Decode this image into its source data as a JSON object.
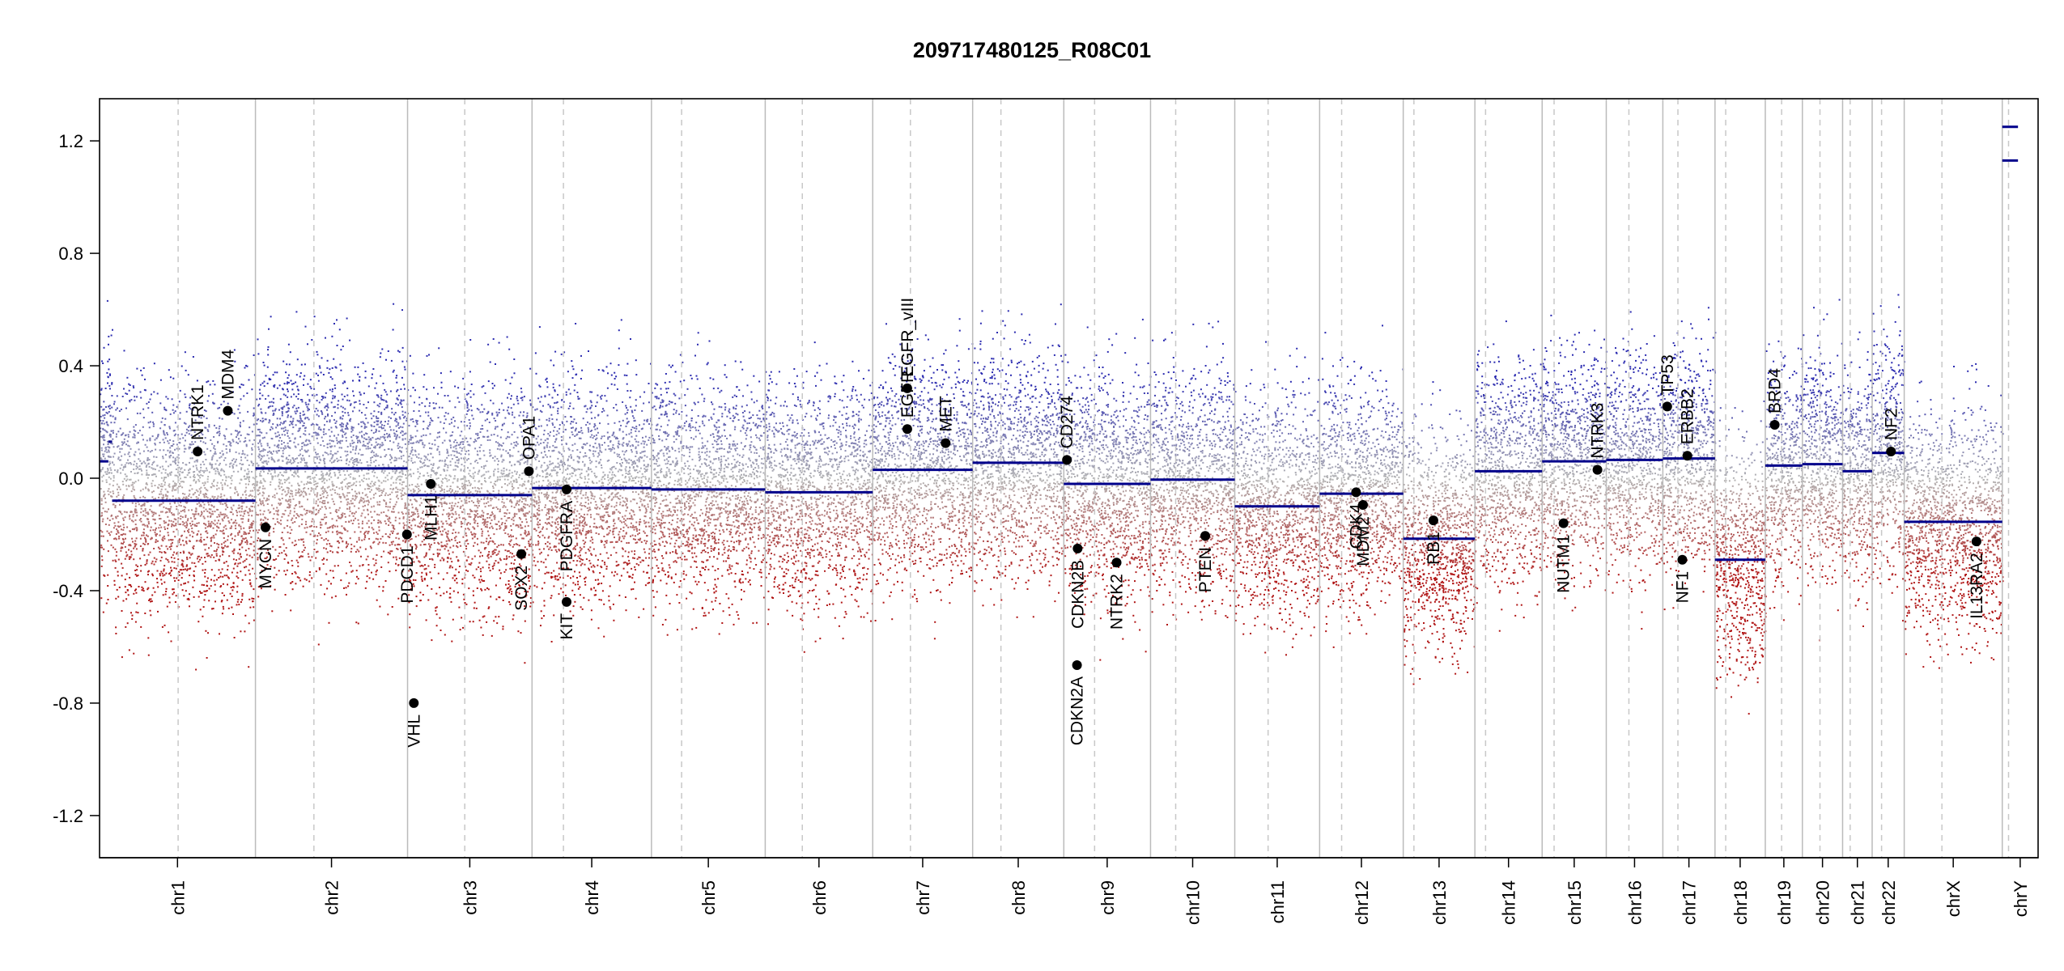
{
  "chart_data": {
    "type": "scatter",
    "title": "209717480125_R08C01",
    "xlabel": "",
    "ylabel": "",
    "ylim": [
      -1.35,
      1.35
    ],
    "yticks": [
      -1.2,
      -0.8,
      -0.4,
      0.0,
      0.4,
      0.8,
      1.2
    ],
    "ytick_labels": [
      "-1.2",
      "-0.8",
      "-0.4",
      "0.0",
      "0.4",
      "0.8",
      "1.2"
    ],
    "colors": {
      "gain": "#2b2bb0",
      "loss": "#b01515",
      "neutral": "#b4b4b4",
      "segment": "#00008b",
      "separator": "#bbbbbb",
      "centromere": "#c8c8c8",
      "gene": "#000000"
    },
    "chromosomes": [
      {
        "name": "chr1",
        "size": 248
      },
      {
        "name": "chr2",
        "size": 242
      },
      {
        "name": "chr3",
        "size": 198
      },
      {
        "name": "chr4",
        "size": 190
      },
      {
        "name": "chr5",
        "size": 181
      },
      {
        "name": "chr6",
        "size": 171
      },
      {
        "name": "chr7",
        "size": 159
      },
      {
        "name": "chr8",
        "size": 145
      },
      {
        "name": "chr9",
        "size": 138
      },
      {
        "name": "chr10",
        "size": 134
      },
      {
        "name": "chr11",
        "size": 135
      },
      {
        "name": "chr12",
        "size": 133
      },
      {
        "name": "chr13",
        "size": 114
      },
      {
        "name": "chr14",
        "size": 107
      },
      {
        "name": "chr15",
        "size": 102
      },
      {
        "name": "chr16",
        "size": 90
      },
      {
        "name": "chr17",
        "size": 83
      },
      {
        "name": "chr18",
        "size": 80
      },
      {
        "name": "chr19",
        "size": 59
      },
      {
        "name": "chr20",
        "size": 64
      },
      {
        "name": "chr21",
        "size": 47
      },
      {
        "name": "chr22",
        "size": 51
      },
      {
        "name": "chrX",
        "size": 156
      },
      {
        "name": "chrY",
        "size": 57
      }
    ],
    "centromeres": [
      {
        "chr": "chr1",
        "pos": 125
      },
      {
        "chr": "chr2",
        "pos": 93
      },
      {
        "chr": "chr3",
        "pos": 91
      },
      {
        "chr": "chr4",
        "pos": 50
      },
      {
        "chr": "chr5",
        "pos": 48
      },
      {
        "chr": "chr6",
        "pos": 59
      },
      {
        "chr": "chr7",
        "pos": 60
      },
      {
        "chr": "chr8",
        "pos": 45
      },
      {
        "chr": "chr9",
        "pos": 49
      },
      {
        "chr": "chr10",
        "pos": 40
      },
      {
        "chr": "chr11",
        "pos": 53
      },
      {
        "chr": "chr12",
        "pos": 35
      },
      {
        "chr": "chr13",
        "pos": 17
      },
      {
        "chr": "chr14",
        "pos": 17
      },
      {
        "chr": "chr15",
        "pos": 19
      },
      {
        "chr": "chr16",
        "pos": 36
      },
      {
        "chr": "chr17",
        "pos": 24
      },
      {
        "chr": "chr18",
        "pos": 17
      },
      {
        "chr": "chr19",
        "pos": 26
      },
      {
        "chr": "chr20",
        "pos": 28
      },
      {
        "chr": "chr21",
        "pos": 12
      },
      {
        "chr": "chr22",
        "pos": 15
      },
      {
        "chr": "chrX",
        "pos": 60
      },
      {
        "chr": "chrY",
        "pos": 10
      }
    ],
    "segments": [
      {
        "chr": "chr1",
        "start": 0,
        "end": 14,
        "value": 0.06
      },
      {
        "chr": "chr1",
        "start": 14,
        "end": 20,
        "value": 0.13
      },
      {
        "chr": "chr1",
        "start": 20,
        "end": 248,
        "value": -0.08
      },
      {
        "chr": "chr2",
        "start": 0,
        "end": 242,
        "value": 0.035
      },
      {
        "chr": "chr3",
        "start": 0,
        "end": 198,
        "value": -0.06
      },
      {
        "chr": "chr4",
        "start": 0,
        "end": 190,
        "value": -0.035
      },
      {
        "chr": "chr5",
        "start": 0,
        "end": 181,
        "value": -0.04
      },
      {
        "chr": "chr6",
        "start": 0,
        "end": 171,
        "value": -0.05
      },
      {
        "chr": "chr7",
        "start": 0,
        "end": 159,
        "value": 0.03
      },
      {
        "chr": "chr8",
        "start": 0,
        "end": 145,
        "value": 0.055
      },
      {
        "chr": "chr9",
        "start": 0,
        "end": 138,
        "value": -0.02
      },
      {
        "chr": "chr10",
        "start": 0,
        "end": 134,
        "value": -0.005
      },
      {
        "chr": "chr11",
        "start": 0,
        "end": 135,
        "value": -0.1
      },
      {
        "chr": "chr12",
        "start": 0,
        "end": 133,
        "value": -0.055
      },
      {
        "chr": "chr13",
        "start": 0,
        "end": 114,
        "value": -0.215
      },
      {
        "chr": "chr14",
        "start": 0,
        "end": 107,
        "value": 0.025
      },
      {
        "chr": "chr15",
        "start": 0,
        "end": 102,
        "value": 0.06
      },
      {
        "chr": "chr16",
        "start": 0,
        "end": 90,
        "value": 0.065
      },
      {
        "chr": "chr17",
        "start": 0,
        "end": 83,
        "value": 0.07
      },
      {
        "chr": "chr18",
        "start": 0,
        "end": 80,
        "value": -0.29
      },
      {
        "chr": "chr19",
        "start": 0,
        "end": 59,
        "value": 0.045
      },
      {
        "chr": "chr20",
        "start": 0,
        "end": 64,
        "value": 0.05
      },
      {
        "chr": "chr21",
        "start": 0,
        "end": 47,
        "value": 0.025
      },
      {
        "chr": "chr22",
        "start": 0,
        "end": 51,
        "value": 0.09
      },
      {
        "chr": "chrX",
        "start": 0,
        "end": 156,
        "value": -0.155
      },
      {
        "chr": "chrY",
        "start": 0,
        "end": 25,
        "value": 1.25
      },
      {
        "chr": "chrY",
        "start": 0,
        "end": 25,
        "value": 1.13
      }
    ],
    "genes": [
      {
        "name": "NTRK1",
        "chr": "chr1",
        "pos": 156,
        "value": 0.095,
        "label_side": "above"
      },
      {
        "name": "MDM4",
        "chr": "chr1",
        "pos": 204,
        "value": 0.24,
        "label_side": "above"
      },
      {
        "name": "MYCN",
        "chr": "chr2",
        "pos": 16,
        "value": -0.175,
        "label_side": "below"
      },
      {
        "name": "PDCD1",
        "chr": "chr2",
        "pos": 241,
        "value": -0.2,
        "label_side": "below"
      },
      {
        "name": "VHL",
        "chr": "chr3",
        "pos": 10,
        "value": -0.8,
        "label_side": "below"
      },
      {
        "name": "MLH1",
        "chr": "chr3",
        "pos": 37,
        "value": -0.02,
        "label_side": "below"
      },
      {
        "name": "SOX2",
        "chr": "chr3",
        "pos": 181,
        "value": -0.27,
        "label_side": "below"
      },
      {
        "name": "OPA1",
        "chr": "chr3",
        "pos": 193,
        "value": 0.025,
        "label_side": "above"
      },
      {
        "name": "KIT",
        "chr": "chr4",
        "pos": 55,
        "value": -0.44,
        "label_side": "below"
      },
      {
        "name": "PDGFRA",
        "chr": "chr4",
        "pos": 55,
        "value": -0.04,
        "label_side": "below"
      },
      {
        "name": "EGFR",
        "chr": "chr7",
        "pos": 55,
        "value": 0.175,
        "label_side": "above"
      },
      {
        "name": "EGFR_vIII",
        "chr": "chr7",
        "pos": 55,
        "value": 0.32,
        "label_side": "above"
      },
      {
        "name": "MET",
        "chr": "chr7",
        "pos": 116,
        "value": 0.125,
        "label_side": "above"
      },
      {
        "name": "CD274",
        "chr": "chr9",
        "pos": 5,
        "value": 0.065,
        "label_side": "above"
      },
      {
        "name": "CDKN2A",
        "chr": "chr9",
        "pos": 21,
        "value": -0.665,
        "label_side": "below"
      },
      {
        "name": "CDKN2B",
        "chr": "chr9",
        "pos": 22,
        "value": -0.25,
        "label_side": "below"
      },
      {
        "name": "NTRK2",
        "chr": "chr9",
        "pos": 84,
        "value": -0.3,
        "label_side": "below"
      },
      {
        "name": "PTEN",
        "chr": "chr10",
        "pos": 87,
        "value": -0.205,
        "label_side": "below"
      },
      {
        "name": "CDK4",
        "chr": "chr12",
        "pos": 58,
        "value": -0.05,
        "label_side": "below"
      },
      {
        "name": "MDM2",
        "chr": "chr12",
        "pos": 69,
        "value": -0.095,
        "label_side": "below"
      },
      {
        "name": "RB1",
        "chr": "chr13",
        "pos": 48,
        "value": -0.15,
        "label_side": "below"
      },
      {
        "name": "NUTM1",
        "chr": "chr15",
        "pos": 34,
        "value": -0.16,
        "label_side": "below"
      },
      {
        "name": "NTRK3",
        "chr": "chr15",
        "pos": 88,
        "value": 0.03,
        "label_side": "above"
      },
      {
        "name": "TP53",
        "chr": "chr17",
        "pos": 7,
        "value": 0.255,
        "label_side": "above"
      },
      {
        "name": "NF1",
        "chr": "chr17",
        "pos": 31,
        "value": -0.29,
        "label_side": "below"
      },
      {
        "name": "ERBB2",
        "chr": "chr17",
        "pos": 39,
        "value": 0.08,
        "label_side": "above"
      },
      {
        "name": "BRD4",
        "chr": "chr19",
        "pos": 15,
        "value": 0.19,
        "label_side": "above"
      },
      {
        "name": "NF2",
        "chr": "chr22",
        "pos": 30,
        "value": 0.095,
        "label_side": "above"
      },
      {
        "name": "IL13RA2",
        "chr": "chrX",
        "pos": 115,
        "value": -0.225,
        "label_side": "below"
      }
    ]
  }
}
